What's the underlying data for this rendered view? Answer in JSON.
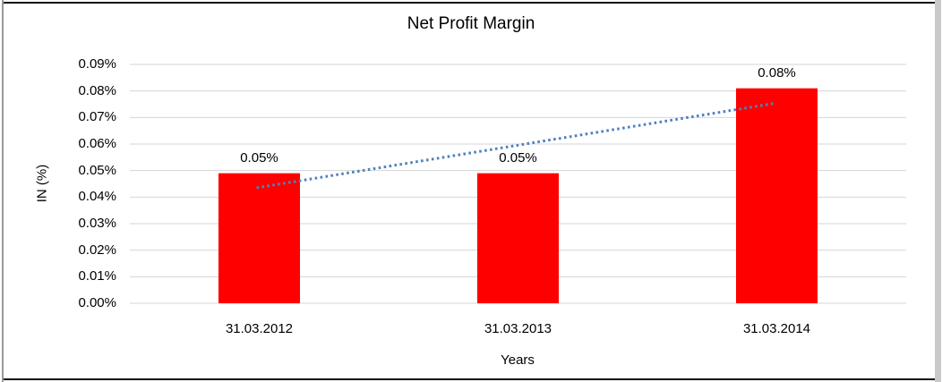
{
  "chart_data": {
    "type": "bar",
    "title": "Net Profit Margin",
    "xlabel": "Years",
    "ylabel": "IN (%)",
    "categories": [
      "31.03.2012",
      "31.03.2013",
      "31.03.2014"
    ],
    "series": [
      {
        "name": "Net Profit Margin",
        "values": [
          0.049,
          0.049,
          0.081
        ]
      }
    ],
    "data_labels": [
      "0.05%",
      "0.05%",
      "0.08%"
    ],
    "ylim": [
      0,
      0.09
    ],
    "ytick_step": 0.01,
    "ytick_labels": [
      "0.00%",
      "0.01%",
      "0.02%",
      "0.03%",
      "0.04%",
      "0.05%",
      "0.06%",
      "0.07%",
      "0.08%",
      "0.09%"
    ],
    "grid": true,
    "legend": "none",
    "colors": {
      "bar": "#FF0000",
      "trendline": "#4F81BD",
      "gridline": "#D6D6D6",
      "text": "#000000"
    },
    "trendline": {
      "style": "dotted",
      "from_value": 0.0435,
      "to_value": 0.0753
    }
  }
}
